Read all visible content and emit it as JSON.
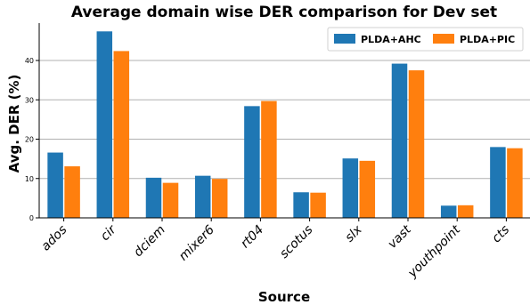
{
  "chart_data": {
    "type": "bar",
    "title": "Average domain wise DER comparison for Dev set",
    "xlabel": "Source",
    "ylabel": "Avg. DER (%)",
    "categories": [
      "ados",
      "cir",
      "dciem",
      "mixer6",
      "rt04",
      "scotus",
      "slx",
      "vast",
      "youthpoint",
      "cts"
    ],
    "series": [
      {
        "name": "PLDA+AHC",
        "color": "#1f77b4",
        "values": [
          16.6,
          47.4,
          10.2,
          10.7,
          28.4,
          6.5,
          15.1,
          39.2,
          3.1,
          18.0
        ]
      },
      {
        "name": "PLDA+PIC",
        "color": "#ff7f0e",
        "values": [
          13.1,
          42.4,
          8.9,
          9.9,
          29.7,
          6.4,
          14.5,
          37.5,
          3.2,
          17.7
        ]
      }
    ],
    "ylim": [
      0,
      49.5
    ],
    "yticks": [
      0,
      10,
      20,
      30,
      40
    ],
    "grid": "horizontal",
    "legend_position": "top-right"
  }
}
